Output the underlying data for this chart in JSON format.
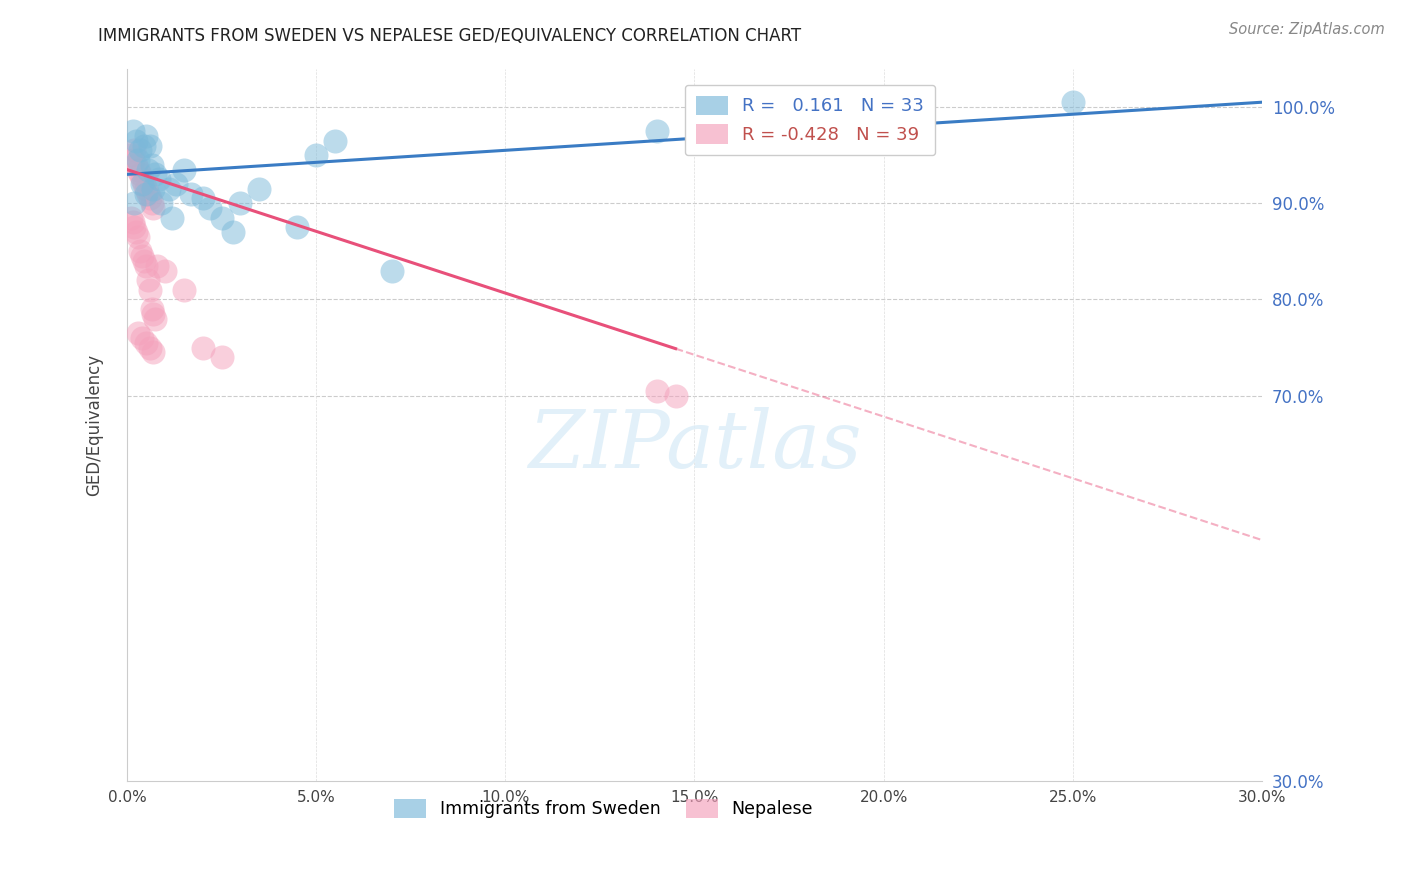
{
  "title": "IMMIGRANTS FROM SWEDEN VS NEPALESE GED/EQUIVALENCY CORRELATION CHART",
  "source": "Source: ZipAtlas.com",
  "ylabel": "GED/Equivalency",
  "xlim": [
    0.0,
    30.0
  ],
  "ylim": [
    30.0,
    104.0
  ],
  "blue_r": 0.161,
  "blue_n": 33,
  "pink_r": -0.428,
  "pink_n": 39,
  "blue_color": "#7ab8d9",
  "pink_color": "#f4a0bb",
  "blue_line_color": "#3a7cc4",
  "pink_line_color": "#e8507a",
  "blue_line_x0": 0.0,
  "blue_line_y0": 93.0,
  "blue_line_x1": 30.0,
  "blue_line_y1": 100.5,
  "pink_line_x0": 0.0,
  "pink_line_y0": 93.5,
  "pink_line_x1": 30.0,
  "pink_line_y1": 55.0,
  "pink_solid_end": 14.5,
  "blue_scatter_x": [
    0.15,
    0.25,
    0.35,
    0.45,
    0.55,
    0.65,
    0.75,
    0.85,
    0.5,
    0.6,
    1.1,
    1.3,
    1.5,
    1.7,
    2.0,
    2.2,
    2.5,
    3.0,
    3.5,
    4.5,
    5.0,
    5.5,
    0.3,
    0.4,
    0.5,
    0.7,
    0.9,
    1.2,
    2.8,
    7.0,
    14.0,
    25.0,
    0.2
  ],
  "blue_scatter_y": [
    97.5,
    96.5,
    95.5,
    96.0,
    93.5,
    94.0,
    93.0,
    92.5,
    97.0,
    96.0,
    91.5,
    92.0,
    93.5,
    91.0,
    90.5,
    89.5,
    88.5,
    90.0,
    91.5,
    87.5,
    95.0,
    96.5,
    94.5,
    92.0,
    91.0,
    91.5,
    90.0,
    88.5,
    87.0,
    83.0,
    97.5,
    100.5,
    90.0
  ],
  "pink_scatter_x": [
    0.1,
    0.15,
    0.2,
    0.25,
    0.3,
    0.35,
    0.4,
    0.45,
    0.5,
    0.55,
    0.6,
    0.65,
    0.7,
    0.1,
    0.15,
    0.2,
    0.25,
    0.3,
    0.35,
    0.4,
    0.45,
    0.5,
    0.55,
    0.6,
    0.65,
    0.7,
    0.75,
    0.8,
    1.0,
    1.5,
    2.0,
    2.5,
    0.3,
    0.4,
    0.5,
    0.6,
    0.7,
    14.0,
    14.5
  ],
  "pink_scatter_y": [
    95.0,
    94.5,
    95.5,
    94.0,
    93.5,
    93.0,
    92.5,
    92.0,
    91.5,
    91.0,
    90.5,
    90.0,
    89.5,
    88.5,
    88.0,
    87.5,
    87.0,
    86.5,
    85.0,
    84.5,
    84.0,
    83.5,
    82.0,
    81.0,
    79.0,
    78.5,
    78.0,
    83.5,
    83.0,
    81.0,
    75.0,
    74.0,
    76.5,
    76.0,
    75.5,
    75.0,
    74.5,
    70.5,
    70.0
  ],
  "yticks": [
    30,
    70,
    80,
    90,
    100
  ],
  "xticks": [
    0,
    5,
    10,
    15,
    20,
    25,
    30
  ],
  "right_tick_labels": [
    "30.0%",
    "70.0%",
    "80.0%",
    "90.0%",
    "100.0%"
  ],
  "bottom_tick_labels": [
    "0.0%",
    "5.0%",
    "10.0%",
    "15.0%",
    "20.0%",
    "25.0%",
    "30.0%"
  ],
  "watermark_text": "ZIPatlas",
  "legend_label_blue": "Immigrants from Sweden",
  "legend_label_pink": "Nepalese"
}
